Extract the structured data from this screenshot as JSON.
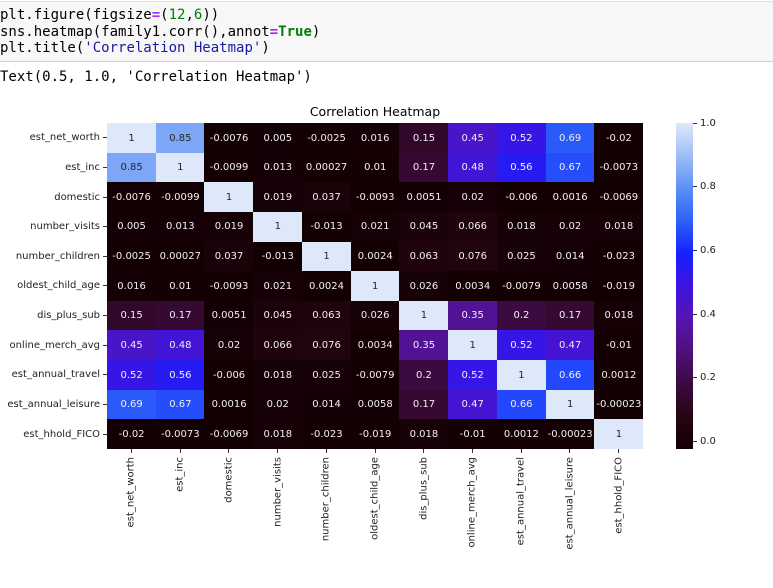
{
  "notebook": {
    "code_cell": {
      "lines": [
        [
          {
            "t": "plt.figure(figsize",
            "c": ""
          },
          {
            "t": "=",
            "c": "tok-op"
          },
          {
            "t": "(",
            "c": ""
          },
          {
            "t": "12",
            "c": "tok-num"
          },
          {
            "t": ",",
            "c": ""
          },
          {
            "t": "6",
            "c": "tok-num"
          },
          {
            "t": "))",
            "c": ""
          }
        ],
        [
          {
            "t": "sns.heatmap(family1.corr(),annot",
            "c": ""
          },
          {
            "t": "=",
            "c": "tok-op"
          },
          {
            "t": "True",
            "c": "tok-kw"
          },
          {
            "t": ")",
            "c": ""
          }
        ],
        [
          {
            "t": "plt.title(",
            "c": ""
          },
          {
            "t": "'Correlation Heatmap'",
            "c": "tok-str"
          },
          {
            "t": ")",
            "c": ""
          }
        ]
      ]
    },
    "output_text": "Text(0.5, 1.0, 'Correlation Heatmap')"
  },
  "chart_data": {
    "type": "heatmap",
    "title": "Correlation Heatmap",
    "xlabel": "",
    "ylabel": "",
    "labels": [
      "est_net_worth",
      "est_inc",
      "domestic",
      "number_visits",
      "number_children",
      "oldest_child_age",
      "dis_plus_sub",
      "online_merch_avg",
      "est_annual_travel",
      "est_annual_leisure",
      "est_hhold_FICO"
    ],
    "values": [
      [
        "1",
        "0.85",
        "-0.0076",
        "0.005",
        "-0.0025",
        "0.016",
        "0.15",
        "0.45",
        "0.52",
        "0.69",
        "-0.02"
      ],
      [
        "0.85",
        "1",
        "-0.0099",
        "0.013",
        "0.00027",
        "0.01",
        "0.17",
        "0.48",
        "0.56",
        "0.67",
        "-0.0073"
      ],
      [
        "-0.0076",
        "-0.0099",
        "1",
        "0.019",
        "0.037",
        "-0.0093",
        "0.0051",
        "0.02",
        "-0.006",
        "0.0016",
        "-0.0069"
      ],
      [
        "0.005",
        "0.013",
        "0.019",
        "1",
        "-0.013",
        "0.021",
        "0.045",
        "0.066",
        "0.018",
        "0.02",
        "0.018"
      ],
      [
        "-0.0025",
        "0.00027",
        "0.037",
        "-0.013",
        "1",
        "0.0024",
        "0.063",
        "0.076",
        "0.025",
        "0.014",
        "-0.023"
      ],
      [
        "0.016",
        "0.01",
        "-0.0093",
        "0.021",
        "0.0024",
        "1",
        "0.026",
        "0.0034",
        "-0.0079",
        "0.0058",
        "-0.019"
      ],
      [
        "0.15",
        "0.17",
        "0.0051",
        "0.045",
        "0.063",
        "0.026",
        "1",
        "0.35",
        "0.2",
        "0.17",
        "0.018"
      ],
      [
        "0.45",
        "0.48",
        "0.02",
        "0.066",
        "0.076",
        "0.0034",
        "0.35",
        "1",
        "0.52",
        "0.47",
        "-0.01"
      ],
      [
        "0.52",
        "0.56",
        "-0.006",
        "0.018",
        "0.025",
        "-0.0079",
        "0.2",
        "0.52",
        "1",
        "0.66",
        "0.0012"
      ],
      [
        "0.69",
        "0.67",
        "0.0016",
        "0.02",
        "0.014",
        "0.0058",
        "0.17",
        "0.47",
        "0.66",
        "1",
        "-0.00023"
      ],
      [
        "-0.02",
        "-0.0073",
        "-0.0069",
        "0.018",
        "-0.023",
        "-0.019",
        "0.018",
        "-0.01",
        "0.0012",
        "-0.00023",
        "1"
      ]
    ],
    "colorbar": {
      "range": [
        0.0,
        1.0
      ],
      "ticks": [
        "0.0",
        "0.2",
        "0.4",
        "0.6",
        "0.8",
        "1.0"
      ],
      "stops": [
        [
          0.0,
          "#120003"
        ],
        [
          0.1,
          "#260611"
        ],
        [
          0.2,
          "#3b0a40"
        ],
        [
          0.3,
          "#4f0f7a"
        ],
        [
          0.4,
          "#5515b0"
        ],
        [
          0.5,
          "#3d14e0"
        ],
        [
          0.6,
          "#1620ff"
        ],
        [
          0.7,
          "#2c62f8"
        ],
        [
          0.8,
          "#5c8ff5"
        ],
        [
          0.9,
          "#9ebef6"
        ],
        [
          1.0,
          "#dde9fb"
        ]
      ]
    },
    "grid": false,
    "legend_position": "right"
  }
}
